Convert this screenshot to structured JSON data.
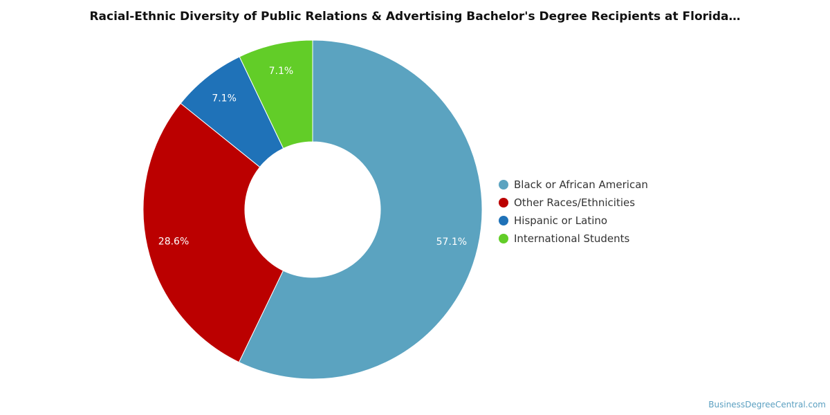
{
  "chart_data": {
    "type": "pie",
    "title": "Racial-Ethnic Diversity of Public Relations & Advertising Bachelor's Degree Recipients at Florida…",
    "donut": true,
    "legend_position": "right",
    "slices": [
      {
        "label": "Black or African American",
        "value": 57.1,
        "value_label": "57.1%",
        "color": "#5ba3c0"
      },
      {
        "label": "Other Races/Ethnicities",
        "value": 28.6,
        "value_label": "28.6%",
        "color": "#bb0000"
      },
      {
        "label": "Hispanic or Latino",
        "value": 7.1,
        "value_label": "7.1%",
        "color": "#1f72b8"
      },
      {
        "label": "International Students",
        "value": 7.1,
        "value_label": "7.1%",
        "color": "#62cd28"
      }
    ]
  },
  "source": "BusinessDegreeCentral.com"
}
